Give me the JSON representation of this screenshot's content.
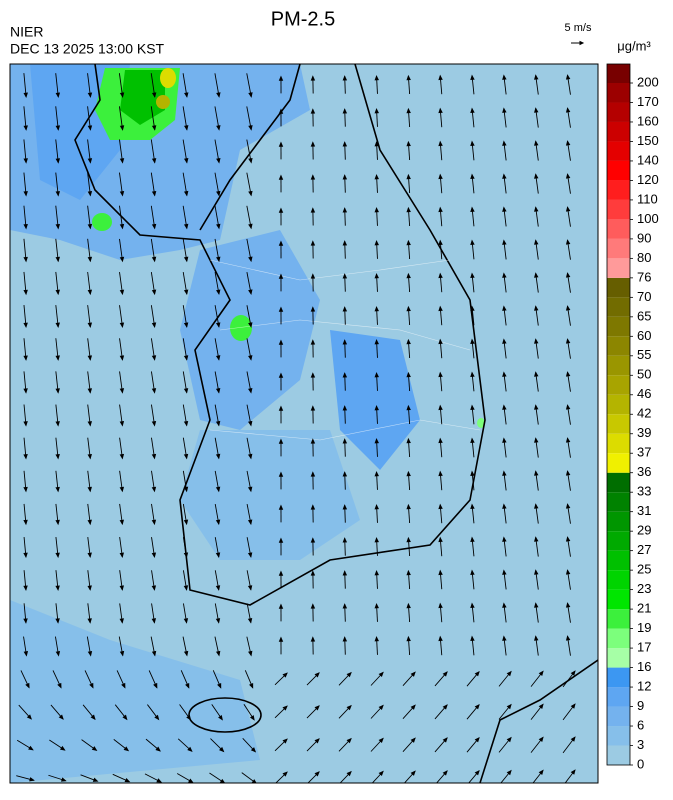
{
  "header": {
    "title": "PM-2.5",
    "agency": "NIER",
    "timestamp": "DEC 13 2025 13:00 KST",
    "wind_scale": "5 m/s"
  },
  "legend": {
    "unit": "μg/m³",
    "labels": [
      0,
      3,
      6,
      9,
      12,
      16,
      17,
      19,
      21,
      23,
      25,
      27,
      29,
      31,
      33,
      36,
      37,
      39,
      42,
      46,
      50,
      55,
      60,
      65,
      70,
      76,
      80,
      90,
      100,
      110,
      120,
      140,
      150,
      160,
      170,
      200
    ],
    "colors": [
      "#9ccbe3",
      "#86bfea",
      "#74b2ee",
      "#5ea6f2",
      "#3c97f2",
      "#a6ffa6",
      "#7cff7c",
      "#3cf03c",
      "#00e600",
      "#00d400",
      "#00c000",
      "#00aa00",
      "#009600",
      "#008200",
      "#006e00",
      "#f0f000",
      "#dcdc00",
      "#c8c800",
      "#b4b400",
      "#a8a400",
      "#9a9600",
      "#8c8600",
      "#7e7800",
      "#726c00",
      "#665e00",
      "#ff9a9a",
      "#ff7a7a",
      "#ff5c5c",
      "#ff3c3c",
      "#ff1e1e",
      "#ff0000",
      "#e40000",
      "#cc0000",
      "#b40000",
      "#9c0000",
      "#780000"
    ]
  }
}
